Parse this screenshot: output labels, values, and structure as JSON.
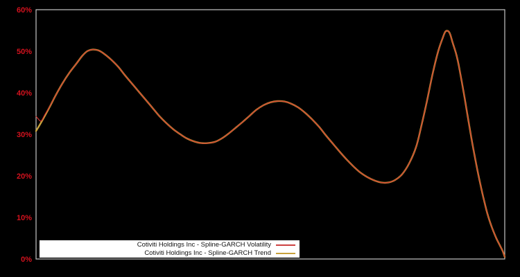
{
  "chart_data": {
    "type": "line",
    "title": "",
    "xlabel": "",
    "ylabel": "",
    "ylim": [
      0,
      60
    ],
    "grid": false,
    "x_axis_labels_visible": false,
    "legend_position": "bottom-left-inside",
    "axis_frame_color": "#c6c6c6",
    "tick_label_color": "#d5121e",
    "background_color": "#000000",
    "y_ticks": [
      {
        "value": 0,
        "label": "0%"
      },
      {
        "value": 10,
        "label": "10%"
      },
      {
        "value": 20,
        "label": "20%"
      },
      {
        "value": 30,
        "label": "30%"
      },
      {
        "value": 40,
        "label": "40%"
      },
      {
        "value": 50,
        "label": "50%"
      },
      {
        "value": 60,
        "label": "60%"
      }
    ],
    "series": [
      {
        "name": "Cotiviti Holdings Inc - Spline-GARCH Trend",
        "color": "#c8a23c",
        "stroke_width": 2.4,
        "points": [
          [
            0,
            30.8
          ],
          [
            0.009,
            32.5
          ],
          [
            0.018,
            34.3
          ],
          [
            0.03,
            36.8
          ],
          [
            0.041,
            39.2
          ],
          [
            0.056,
            42.2
          ],
          [
            0.071,
            44.8
          ],
          [
            0.086,
            47.0
          ],
          [
            0.098,
            48.8
          ],
          [
            0.109,
            50.0
          ],
          [
            0.121,
            50.4
          ],
          [
            0.133,
            50.2
          ],
          [
            0.145,
            49.4
          ],
          [
            0.16,
            48.0
          ],
          [
            0.175,
            46.3
          ],
          [
            0.189,
            44.3
          ],
          [
            0.204,
            42.3
          ],
          [
            0.219,
            40.3
          ],
          [
            0.234,
            38.3
          ],
          [
            0.249,
            36.3
          ],
          [
            0.263,
            34.4
          ],
          [
            0.278,
            32.7
          ],
          [
            0.293,
            31.2
          ],
          [
            0.308,
            30.0
          ],
          [
            0.322,
            29.0
          ],
          [
            0.337,
            28.3
          ],
          [
            0.352,
            27.9
          ],
          [
            0.367,
            27.9
          ],
          [
            0.382,
            28.2
          ],
          [
            0.396,
            29.0
          ],
          [
            0.411,
            30.2
          ],
          [
            0.426,
            31.6
          ],
          [
            0.441,
            33.0
          ],
          [
            0.456,
            34.5
          ],
          [
            0.47,
            35.9
          ],
          [
            0.485,
            37.0
          ],
          [
            0.5,
            37.7
          ],
          [
            0.515,
            38.0
          ],
          [
            0.53,
            37.9
          ],
          [
            0.544,
            37.4
          ],
          [
            0.559,
            36.5
          ],
          [
            0.574,
            35.2
          ],
          [
            0.589,
            33.6
          ],
          [
            0.604,
            31.8
          ],
          [
            0.618,
            29.8
          ],
          [
            0.633,
            27.8
          ],
          [
            0.648,
            25.8
          ],
          [
            0.663,
            23.9
          ],
          [
            0.678,
            22.2
          ],
          [
            0.692,
            20.8
          ],
          [
            0.707,
            19.7
          ],
          [
            0.722,
            18.9
          ],
          [
            0.737,
            18.4
          ],
          [
            0.751,
            18.4
          ],
          [
            0.766,
            19.0
          ],
          [
            0.781,
            20.4
          ],
          [
            0.796,
            23.0
          ],
          [
            0.811,
            27.0
          ],
          [
            0.822,
            32.0
          ],
          [
            0.834,
            38.0
          ],
          [
            0.846,
            44.5
          ],
          [
            0.858,
            50.0
          ],
          [
            0.867,
            53.0
          ],
          [
            0.874,
            54.8
          ],
          [
            0.882,
            54.5
          ],
          [
            0.889,
            52.0
          ],
          [
            0.896,
            49.5
          ],
          [
            0.902,
            46.5
          ],
          [
            0.911,
            41.0
          ],
          [
            0.92,
            35.0
          ],
          [
            0.929,
            29.0
          ],
          [
            0.938,
            23.5
          ],
          [
            0.947,
            18.5
          ],
          [
            0.956,
            14.0
          ],
          [
            0.964,
            10.5
          ],
          [
            0.973,
            7.5
          ],
          [
            0.982,
            5.0
          ],
          [
            0.99,
            3.2
          ],
          [
            0.996,
            1.8
          ],
          [
            1,
            0.5
          ]
        ]
      },
      {
        "name": "Cotiviti Holdings Inc - Spline-GARCH Volatility",
        "color": "#d03430",
        "stroke_width": 1.2,
        "points": [
          [
            0,
            34.3
          ],
          [
            0.004,
            33.8
          ],
          [
            0.009,
            33.2
          ],
          [
            0.013,
            33.5
          ],
          [
            0.018,
            34.6
          ],
          [
            0.024,
            35.7
          ],
          [
            0.03,
            36.9
          ],
          [
            0.041,
            39.2
          ],
          [
            0.056,
            42.2
          ],
          [
            0.071,
            44.8
          ],
          [
            0.086,
            47.0
          ],
          [
            0.098,
            48.8
          ],
          [
            0.109,
            50.0
          ],
          [
            0.121,
            50.4
          ],
          [
            0.133,
            50.2
          ],
          [
            0.145,
            49.4
          ],
          [
            0.16,
            48.0
          ],
          [
            0.175,
            46.3
          ],
          [
            0.189,
            44.3
          ],
          [
            0.204,
            42.3
          ],
          [
            0.219,
            40.3
          ],
          [
            0.234,
            38.3
          ],
          [
            0.249,
            36.3
          ],
          [
            0.263,
            34.4
          ],
          [
            0.278,
            32.7
          ],
          [
            0.293,
            31.2
          ],
          [
            0.308,
            30.0
          ],
          [
            0.322,
            29.0
          ],
          [
            0.337,
            28.3
          ],
          [
            0.352,
            27.9
          ],
          [
            0.367,
            27.9
          ],
          [
            0.382,
            28.2
          ],
          [
            0.396,
            29.0
          ],
          [
            0.411,
            30.2
          ],
          [
            0.426,
            31.6
          ],
          [
            0.441,
            33.0
          ],
          [
            0.456,
            34.5
          ],
          [
            0.47,
            35.9
          ],
          [
            0.485,
            37.0
          ],
          [
            0.5,
            37.7
          ],
          [
            0.515,
            38.0
          ],
          [
            0.53,
            37.9
          ],
          [
            0.544,
            37.4
          ],
          [
            0.559,
            36.5
          ],
          [
            0.574,
            35.2
          ],
          [
            0.589,
            33.6
          ],
          [
            0.604,
            31.8
          ],
          [
            0.618,
            29.8
          ],
          [
            0.633,
            27.8
          ],
          [
            0.648,
            25.8
          ],
          [
            0.663,
            23.9
          ],
          [
            0.678,
            22.2
          ],
          [
            0.692,
            20.8
          ],
          [
            0.707,
            19.7
          ],
          [
            0.722,
            18.9
          ],
          [
            0.737,
            18.4
          ],
          [
            0.751,
            18.4
          ],
          [
            0.766,
            19.0
          ],
          [
            0.781,
            20.4
          ],
          [
            0.796,
            23.0
          ],
          [
            0.811,
            27.0
          ],
          [
            0.822,
            32.0
          ],
          [
            0.834,
            38.0
          ],
          [
            0.846,
            44.5
          ],
          [
            0.858,
            50.0
          ],
          [
            0.867,
            53.0
          ],
          [
            0.874,
            54.8
          ],
          [
            0.882,
            54.5
          ],
          [
            0.889,
            52.0
          ],
          [
            0.896,
            49.5
          ],
          [
            0.902,
            46.5
          ],
          [
            0.911,
            41.0
          ],
          [
            0.92,
            35.0
          ],
          [
            0.929,
            29.0
          ],
          [
            0.938,
            23.5
          ],
          [
            0.947,
            18.5
          ],
          [
            0.956,
            14.0
          ],
          [
            0.964,
            10.5
          ],
          [
            0.973,
            7.5
          ],
          [
            0.982,
            5.0
          ],
          [
            0.99,
            3.2
          ],
          [
            0.996,
            1.8
          ],
          [
            1,
            0.5
          ]
        ]
      }
    ]
  },
  "legend": {
    "items": [
      {
        "label": "Cotiviti Holdings Inc - Spline-GARCH Volatility",
        "color": "#cc4040"
      },
      {
        "label": "Cotiviti Holdings Inc - Spline-GARCH Trend",
        "color": "#c8a23c"
      }
    ]
  }
}
